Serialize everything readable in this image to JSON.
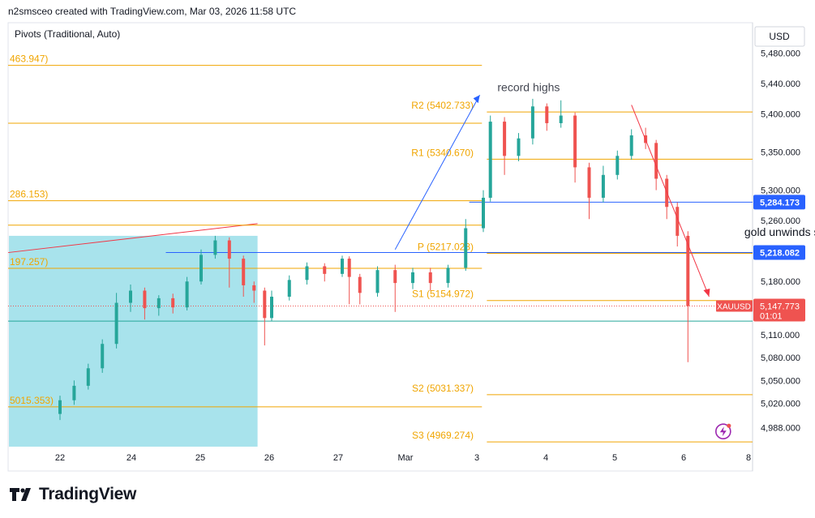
{
  "header": {
    "credit": "n2smsceo created with TradingView.com, Mar 03, 2026 11:58 UTC"
  },
  "brand": {
    "name": "TradingView",
    "logo_icon": "tradingview-logo-icon"
  },
  "colors": {
    "up": "#26a69a",
    "down": "#ef5350",
    "pivot": "#f0a500",
    "channel": "#2962ff",
    "trend": "#f23645",
    "zone": "#a8e3ec",
    "support": "#26a69a"
  },
  "chart_data": {
    "type": "candlestick",
    "symbol": "XAUUSD",
    "currency": "USD",
    "indicator_label": "Pivots (Traditional, Auto)",
    "x_ticks": [
      "22",
      "24",
      "25",
      "26",
      "27",
      "Mar",
      "3",
      "4",
      "5",
      "6",
      "8"
    ],
    "y_ticks": [
      "5,480.000",
      "5,440.000",
      "5,400.000",
      "5,350.000",
      "5,300.000",
      "5,260.000",
      "5,180.000",
      "5,110.000",
      "5,080.000",
      "5,050.000",
      "5,020.000",
      "4,988.000"
    ],
    "ylim": [
      4963,
      5520
    ],
    "price_tags": [
      {
        "label": "5,284.173",
        "value": 5284.173,
        "style": "channel"
      },
      {
        "label": "5,218.082",
        "value": 5218.082,
        "style": "channel"
      },
      {
        "label": "5,147.773",
        "value": 5147.773,
        "style": "last",
        "symbol": "XAUUSD",
        "countdown": "01:01"
      }
    ],
    "pivots_current": [
      {
        "label": "R2 (5402.733)",
        "value": 5402.733
      },
      {
        "label": "R1 (5340.670)",
        "value": 5340.67
      },
      {
        "label": "P (5217.023)",
        "value": 5217.023
      },
      {
        "label": "S1 (5154.972)",
        "value": 5154.972
      },
      {
        "label": "S2 (5031.337)",
        "value": 5031.337
      },
      {
        "label": "S3 (4969.274)",
        "value": 4969.274
      }
    ],
    "pivots_previous": [
      {
        "label": "463.947)",
        "value": 5463.947,
        "line": true
      },
      {
        "label": "",
        "value": 5388,
        "line": true
      },
      {
        "label": "286.153)",
        "value": 5286.153,
        "line": true
      },
      {
        "label": "",
        "value": 5254,
        "line": true
      },
      {
        "label": "197.257)",
        "value": 5197.257,
        "line": true
      },
      {
        "label": "5015.353)",
        "value": 5015.353,
        "line": true
      }
    ],
    "support_line": 5128,
    "annotations": [
      {
        "text": "record highs"
      },
      {
        "text": "gold unwinds steeply"
      }
    ],
    "candles": [
      {
        "x": 22,
        "o": 5006,
        "c": 5024,
        "h": 5030,
        "l": 4998
      },
      {
        "x": 22.2,
        "o": 5024,
        "c": 5043,
        "h": 5050,
        "l": 5018
      },
      {
        "x": 22.4,
        "o": 5043,
        "c": 5066,
        "h": 5072,
        "l": 5038
      },
      {
        "x": 22.6,
        "o": 5066,
        "c": 5098,
        "h": 5104,
        "l": 5060
      },
      {
        "x": 22.8,
        "o": 5098,
        "c": 5152,
        "h": 5165,
        "l": 5092
      },
      {
        "x": 23.0,
        "o": 5152,
        "c": 5168,
        "h": 5176,
        "l": 5140
      },
      {
        "x": 23.2,
        "o": 5168,
        "c": 5145,
        "h": 5172,
        "l": 5130
      },
      {
        "x": 23.4,
        "o": 5145,
        "c": 5158,
        "h": 5162,
        "l": 5135
      },
      {
        "x": 23.6,
        "o": 5158,
        "c": 5146,
        "h": 5164,
        "l": 5138
      },
      {
        "x": 23.8,
        "o": 5146,
        "c": 5180,
        "h": 5186,
        "l": 5142
      },
      {
        "x": 24.0,
        "o": 5180,
        "c": 5215,
        "h": 5222,
        "l": 5176
      },
      {
        "x": 24.2,
        "o": 5215,
        "c": 5234,
        "h": 5240,
        "l": 5210
      },
      {
        "x": 24.4,
        "o": 5234,
        "c": 5210,
        "h": 5238,
        "l": 5172
      },
      {
        "x": 24.6,
        "o": 5210,
        "c": 5175,
        "h": 5214,
        "l": 5160
      },
      {
        "x": 24.75,
        "o": 5175,
        "c": 5168,
        "h": 5180,
        "l": 5152
      },
      {
        "x": 24.9,
        "o": 5168,
        "c": 5132,
        "h": 5172,
        "l": 5096
      },
      {
        "x": 25.0,
        "o": 5132,
        "c": 5160,
        "h": 5168,
        "l": 5128
      },
      {
        "x": 25.25,
        "o": 5160,
        "c": 5182,
        "h": 5188,
        "l": 5155
      },
      {
        "x": 25.5,
        "o": 5182,
        "c": 5200,
        "h": 5205,
        "l": 5176
      },
      {
        "x": 25.75,
        "o": 5200,
        "c": 5190,
        "h": 5204,
        "l": 5180
      },
      {
        "x": 26.0,
        "o": 5190,
        "c": 5210,
        "h": 5214,
        "l": 5186
      },
      {
        "x": 26.1,
        "o": 5210,
        "c": 5186,
        "h": 5213,
        "l": 5150
      },
      {
        "x": 26.25,
        "o": 5186,
        "c": 5165,
        "h": 5190,
        "l": 5150
      },
      {
        "x": 26.5,
        "o": 5165,
        "c": 5195,
        "h": 5200,
        "l": 5160
      },
      {
        "x": 26.75,
        "o": 5195,
        "c": 5178,
        "h": 5202,
        "l": 5140
      },
      {
        "x": 27.0,
        "o": 5178,
        "c": 5192,
        "h": 5198,
        "l": 5170
      },
      {
        "x": 27.25,
        "o": 5192,
        "c": 5178,
        "h": 5198,
        "l": 5168
      },
      {
        "x": 27.5,
        "o": 5178,
        "c": 5198,
        "h": 5202,
        "l": 5172
      },
      {
        "x": 27.75,
        "o": 5198,
        "c": 5250,
        "h": 5262,
        "l": 5194
      },
      {
        "x": 28.0,
        "o": 5250,
        "c": 5290,
        "h": 5300,
        "l": 5245
      },
      {
        "x": 28.1,
        "o": 5290,
        "c": 5390,
        "h": 5398,
        "l": 5285
      },
      {
        "x": 28.3,
        "o": 5390,
        "c": 5345,
        "h": 5396,
        "l": 5320
      },
      {
        "x": 28.5,
        "o": 5345,
        "c": 5368,
        "h": 5375,
        "l": 5338
      },
      {
        "x": 28.7,
        "o": 5368,
        "c": 5410,
        "h": 5420,
        "l": 5360
      },
      {
        "x": 28.9,
        "o": 5410,
        "c": 5388,
        "h": 5414,
        "l": 5378
      },
      {
        "x": 29.1,
        "o": 5388,
        "c": 5398,
        "h": 5418,
        "l": 5382
      },
      {
        "x": 29.3,
        "o": 5398,
        "c": 5330,
        "h": 5402,
        "l": 5310
      },
      {
        "x": 29.5,
        "o": 5330,
        "c": 5290,
        "h": 5336,
        "l": 5262
      },
      {
        "x": 29.7,
        "o": 5290,
        "c": 5320,
        "h": 5332,
        "l": 5284
      },
      {
        "x": 29.9,
        "o": 5320,
        "c": 5345,
        "h": 5352,
        "l": 5314
      },
      {
        "x": 30.1,
        "o": 5345,
        "c": 5372,
        "h": 5380,
        "l": 5340
      },
      {
        "x": 30.3,
        "o": 5372,
        "c": 5362,
        "h": 5382,
        "l": 5354
      },
      {
        "x": 30.45,
        "o": 5362,
        "c": 5315,
        "h": 5366,
        "l": 5300
      },
      {
        "x": 30.6,
        "o": 5315,
        "c": 5278,
        "h": 5320,
        "l": 5262
      },
      {
        "x": 30.75,
        "o": 5278,
        "c": 5240,
        "h": 5284,
        "l": 5226
      },
      {
        "x": 30.9,
        "o": 5240,
        "c": 5147.773,
        "h": 5246,
        "l": 5074
      }
    ]
  }
}
